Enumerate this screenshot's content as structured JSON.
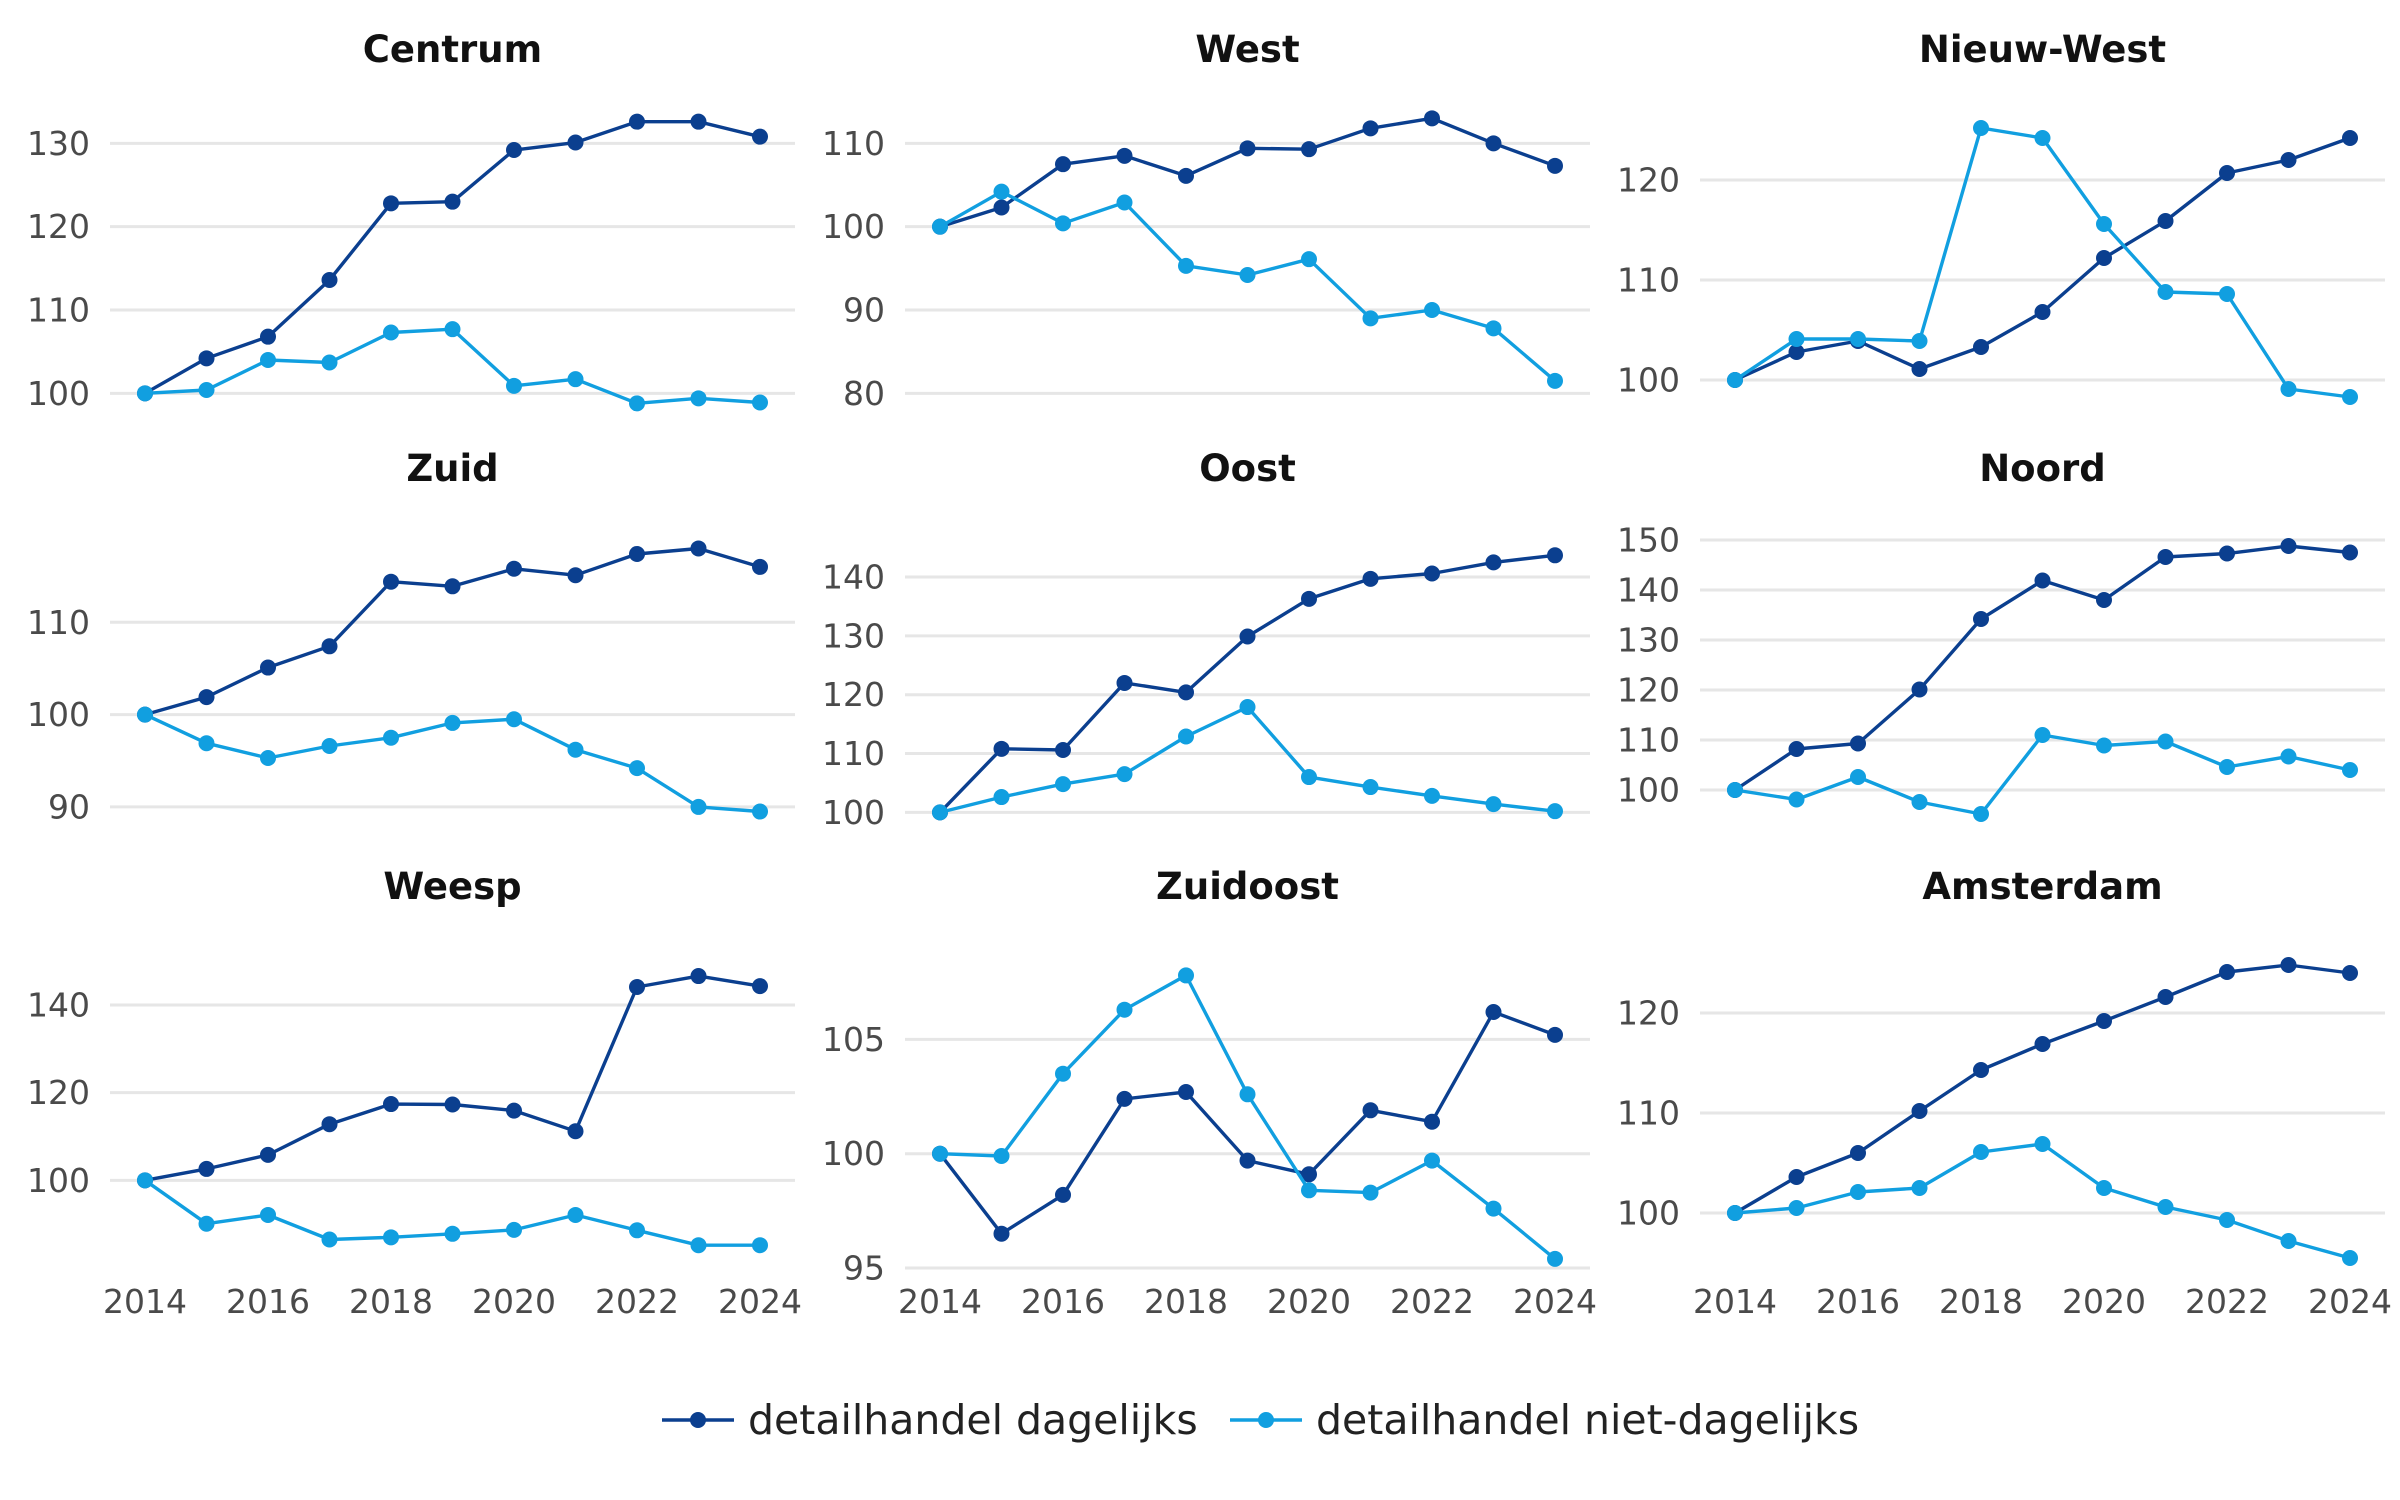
{
  "chart_data": {
    "type": "line",
    "x": [
      2014,
      2015,
      2016,
      2017,
      2018,
      2019,
      2020,
      2021,
      2022,
      2023,
      2024
    ],
    "x_ticks": [
      2014,
      2016,
      2018,
      2020,
      2022,
      2024
    ],
    "x_tick_labels": [
      "2014",
      "2016",
      "2018",
      "2020",
      "2022",
      "2024"
    ],
    "legend": {
      "position": "bottom",
      "entries": [
        {
          "name": "detailhandel dagelijks",
          "color": "#0b3f8f"
        },
        {
          "name": "detailhandel niet-dagelijks",
          "color": "#119fe0"
        }
      ]
    },
    "grid": true,
    "panels": [
      {
        "title": "Centrum",
        "ylim": [
          98,
          134
        ],
        "yticks": [
          100,
          110,
          120,
          130
        ],
        "ytick_labels": [
          "100",
          "110",
          "120",
          "130"
        ],
        "series": [
          {
            "name": "detailhandel dagelijks",
            "values": [
              100,
              104.2,
              106.8,
              113.6,
              122.8,
              123,
              129.2,
              130.1,
              132.6,
              132.6,
              130.8
            ]
          },
          {
            "name": "detailhandel niet-dagelijks",
            "values": [
              100,
              100.4,
              104,
              103.7,
              107.3,
              107.7,
              100.9,
              101.7,
              98.8,
              99.4,
              98.9
            ]
          }
        ]
      },
      {
        "title": "West",
        "ylim": [
          78,
          114
        ],
        "yticks": [
          80,
          90,
          100,
          110
        ],
        "ytick_labels": [
          "80",
          "90",
          "100",
          "110"
        ],
        "series": [
          {
            "name": "detailhandel dagelijks",
            "values": [
              100,
              102.3,
              107.5,
              108.5,
              106.1,
              109.4,
              109.3,
              111.8,
              113,
              110,
              107.3
            ]
          },
          {
            "name": "detailhandel niet-dagelijks",
            "values": [
              100,
              104.2,
              100.4,
              102.9,
              95.3,
              94.2,
              96.1,
              89,
              90,
              87.8,
              81.5
            ]
          }
        ]
      },
      {
        "title": "Nieuw-West",
        "ylim": [
          97,
          127
        ],
        "yticks": [
          100,
          110,
          120
        ],
        "ytick_labels": [
          "100",
          "110",
          "120"
        ],
        "series": [
          {
            "name": "detailhandel dagelijks",
            "values": [
              100,
              102.8,
              103.9,
              101.1,
              103.3,
              106.8,
              112.2,
              115.9,
              120.7,
              122,
              124.2
            ]
          },
          {
            "name": "detailhandel niet-dagelijks",
            "values": [
              100,
              104.1,
              104.1,
              103.9,
              125.2,
              124.2,
              115.6,
              108.8,
              108.6,
              99.1,
              98.3
            ]
          }
        ]
      },
      {
        "title": "Zuid",
        "ylim": [
          87.5,
          120
        ],
        "yticks": [
          90,
          100,
          110
        ],
        "ytick_labels": [
          "90",
          "100",
          "110"
        ],
        "series": [
          {
            "name": "detailhandel dagelijks",
            "values": [
              100,
              101.9,
              105.1,
              107.4,
              114.4,
              113.9,
              115.8,
              115.1,
              117.4,
              118,
              116
            ]
          },
          {
            "name": "detailhandel niet-dagelijks",
            "values": [
              100,
              96.9,
              95.3,
              96.6,
              97.5,
              99.1,
              99.5,
              96.2,
              94.2,
              90,
              89.5
            ]
          }
        ]
      },
      {
        "title": "Oost",
        "ylim": [
          97,
          148
        ],
        "yticks": [
          100,
          110,
          120,
          130,
          140
        ],
        "ytick_labels": [
          "100",
          "110",
          "120",
          "130",
          "140"
        ],
        "series": [
          {
            "name": "detailhandel dagelijks",
            "values": [
              100,
              110.8,
              110.6,
              122,
              120.4,
              129.9,
              136.3,
              139.7,
              140.6,
              142.5,
              143.7
            ]
          },
          {
            "name": "detailhandel niet-dagelijks",
            "values": [
              100,
              102.6,
              104.8,
              106.5,
              112.9,
              117.9,
              106,
              104.3,
              102.8,
              101.4,
              100.2
            ]
          }
        ]
      },
      {
        "title": "Noord",
        "ylim": [
          92,
          152
        ],
        "yticks": [
          100,
          110,
          120,
          130,
          140,
          150
        ],
        "ytick_labels": [
          "100",
          "110",
          "120",
          "130",
          "140",
          "150"
        ],
        "series": [
          {
            "name": "detailhandel dagelijks",
            "values": [
              100,
              108.2,
              109.3,
              120.1,
              134.2,
              141.9,
              138,
              146.6,
              147.3,
              148.8,
              147.5
            ]
          },
          {
            "name": "detailhandel niet-dagelijks",
            "values": [
              100,
              98.1,
              102.6,
              97.6,
              95.2,
              111,
              108.9,
              109.7,
              104.6,
              106.7,
              104
            ]
          }
        ]
      },
      {
        "title": "Weesp",
        "ylim": [
          80,
          153
        ],
        "yticks": [
          100,
          120,
          140
        ],
        "ytick_labels": [
          "100",
          "120",
          "140"
        ],
        "series": [
          {
            "name": "detailhandel dagelijks",
            "values": [
              100,
              102.6,
              105.8,
              112.8,
              117.4,
              117.3,
              115.9,
              111.2,
              144.1,
              146.6,
              144.3
            ]
          },
          {
            "name": "detailhandel niet-dagelijks",
            "values": [
              100,
              90.1,
              92.1,
              86.5,
              87,
              87.8,
              88.7,
              92.1,
              88.6,
              85.2,
              85.2
            ]
          }
        ]
      },
      {
        "title": "Zuidoost",
        "ylim": [
          95,
          109
        ],
        "yticks": [
          95,
          100,
          105
        ],
        "ytick_labels": [
          "95",
          "100",
          "105"
        ],
        "series": [
          {
            "name": "detailhandel dagelijks",
            "values": [
              100,
              96.5,
              98.2,
              102.4,
              102.7,
              99.7,
              99.1,
              101.9,
              101.4,
              106.2,
              105.2
            ]
          },
          {
            "name": "detailhandel niet-dagelijks",
            "values": [
              100,
              99.9,
              103.5,
              106.3,
              107.8,
              102.6,
              98.4,
              98.3,
              99.7,
              97.6,
              95.4
            ]
          }
        ]
      },
      {
        "title": "Amsterdam",
        "ylim": [
          94.5,
          126.5
        ],
        "yticks": [
          100,
          110,
          120
        ],
        "ytick_labels": [
          "100",
          "110",
          "120"
        ],
        "series": [
          {
            "name": "detailhandel dagelijks",
            "values": [
              100,
              103.6,
              106,
              110.2,
              114.3,
              116.9,
              119.2,
              121.6,
              124.1,
              124.8,
              124
            ]
          },
          {
            "name": "detailhandel niet-dagelijks",
            "values": [
              100,
              100.5,
              102.1,
              102.5,
              106.1,
              106.9,
              102.5,
              100.6,
              99.3,
              97.2,
              95.5
            ]
          }
        ]
      }
    ]
  }
}
